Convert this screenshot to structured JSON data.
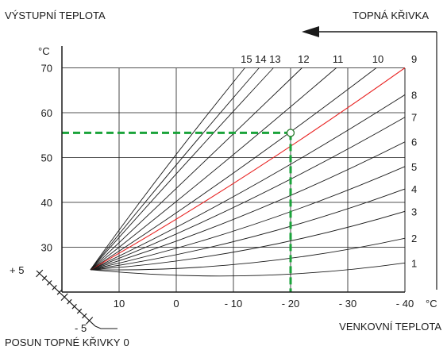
{
  "chart_data": {
    "type": "line",
    "title": "",
    "ylabel": "VÝSTUPNÍ TEPLOTA",
    "yunit": "°C",
    "xlabel": "VENKOVNÍ TEPLOTA",
    "xunit": "°C",
    "curve_family_label": "TOPNÁ KŘIVKA",
    "shift_label": "POSUN TOPNÉ KŘIVKY",
    "shift_zero_label": "0",
    "shift_plus_label": "+ 5",
    "shift_minus_label": "- 5",
    "x_ticks": [
      {
        "value": 20,
        "label": ""
      },
      {
        "value": 10,
        "label": "10"
      },
      {
        "value": 0,
        "label": "0"
      },
      {
        "value": -10,
        "label": "- 10"
      },
      {
        "value": -20,
        "label": "- 20"
      },
      {
        "value": -30,
        "label": "- 30"
      },
      {
        "value": -40,
        "label": "- 40"
      }
    ],
    "y_ticks": [
      {
        "value": 20,
        "label": ""
      },
      {
        "value": 30,
        "label": "30"
      },
      {
        "value": 40,
        "label": "40"
      },
      {
        "value": 50,
        "label": "50"
      },
      {
        "value": 60,
        "label": "60"
      },
      {
        "value": 70,
        "label": "70"
      }
    ],
    "xlim": [
      20,
      -40
    ],
    "ylim": [
      20,
      75
    ],
    "grid": true,
    "start_point": {
      "x": 15,
      "y": 25
    },
    "curves": [
      {
        "label": "1",
        "end_x": -40,
        "end_y": 26.5
      },
      {
        "label": "2",
        "end_x": -40,
        "end_y": 32
      },
      {
        "label": "3",
        "end_x": -40,
        "end_y": 38
      },
      {
        "label": "4",
        "end_x": -40,
        "end_y": 43
      },
      {
        "label": "5",
        "end_x": -40,
        "end_y": 48
      },
      {
        "label": "6",
        "end_x": -40,
        "end_y": 53.5
      },
      {
        "label": "7",
        "end_x": -40,
        "end_y": 59
      },
      {
        "label": "8",
        "end_x": -40,
        "end_y": 64
      },
      {
        "label": "9",
        "end_x": -40,
        "end_y": 70,
        "highlighted": true
      },
      {
        "label": "10",
        "end_x": -35,
        "end_y": 70
      },
      {
        "label": "11",
        "end_x": -28,
        "end_y": 70
      },
      {
        "label": "12",
        "end_x": -22,
        "end_y": 70
      },
      {
        "label": "13",
        "end_x": -17,
        "end_y": 70
      },
      {
        "label": "14",
        "end_x": -14.5,
        "end_y": 70
      },
      {
        "label": "15",
        "end_x": -12,
        "end_y": 70
      }
    ],
    "reading": {
      "x": -20,
      "y": 55.5
    },
    "colors": {
      "axis": "#1a1a1a",
      "curve": "#1a1a1a",
      "highlight": "#e8201f",
      "reading": "#1aa33a",
      "marker": "#2e7d32"
    }
  }
}
